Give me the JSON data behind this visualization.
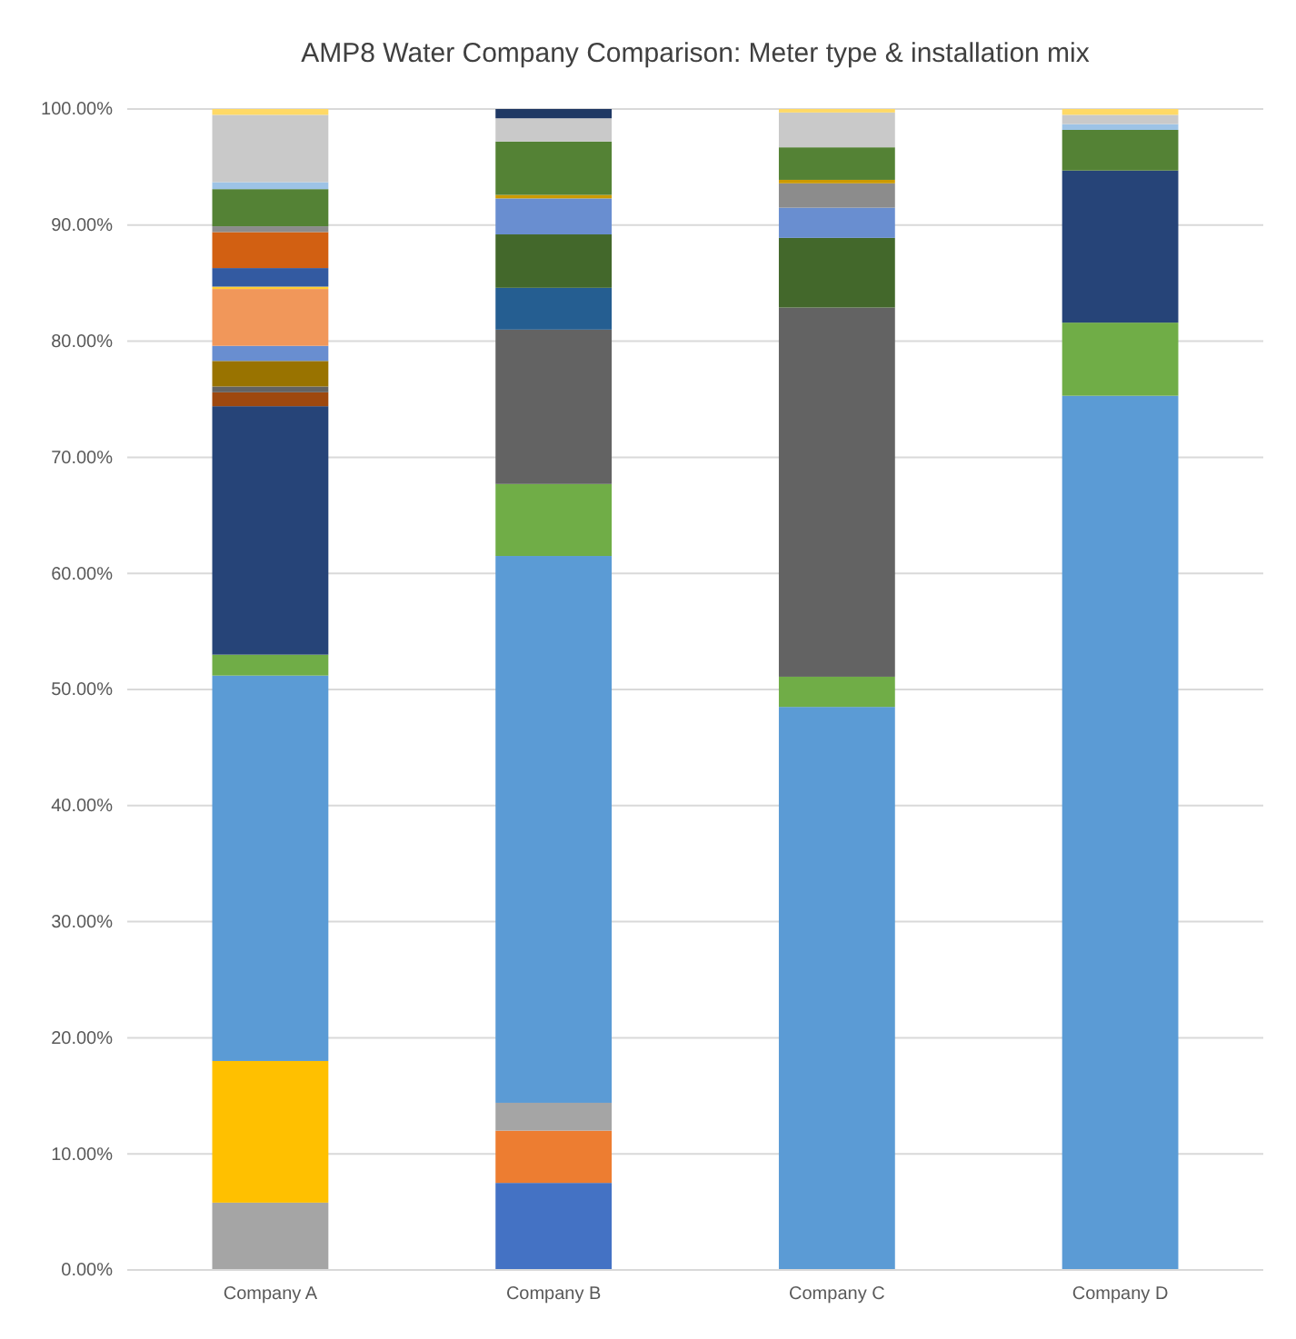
{
  "chart_data": {
    "type": "bar",
    "stacked": true,
    "title": "AMP8 Water Company Comparison: Meter type & installation mix",
    "categories": [
      "Company A",
      "Company B",
      "Company C",
      "Company D"
    ],
    "series": [
      {
        "color": "#4472c4",
        "values": [
          null,
          7.5,
          null,
          null
        ]
      },
      {
        "color": "#ed7d31",
        "values": [
          null,
          4.5,
          null,
          null
        ]
      },
      {
        "color": "#a5a5a5",
        "values": [
          5.8,
          2.4,
          null,
          null
        ]
      },
      {
        "color": "#ffc000",
        "values": [
          12.2,
          null,
          null,
          null
        ]
      },
      {
        "color": "#5b9bd5",
        "values": [
          33.2,
          47.1,
          48.5,
          75.3
        ]
      },
      {
        "color": "#70ad47",
        "values": [
          1.8,
          6.2,
          2.6,
          6.3
        ]
      },
      {
        "color": "#264478",
        "values": [
          21.4,
          null,
          null,
          13.1
        ]
      },
      {
        "color": "#9e480e",
        "values": [
          1.2,
          null,
          null,
          null
        ]
      },
      {
        "color": "#636363",
        "values": [
          0.5,
          13.3,
          31.8,
          null
        ]
      },
      {
        "color": "#997300",
        "values": [
          2.2,
          null,
          null,
          null
        ]
      },
      {
        "color": "#255e91",
        "values": [
          null,
          3.6,
          null,
          null
        ]
      },
      {
        "color": "#43682b",
        "values": [
          null,
          4.6,
          6.0,
          null
        ]
      },
      {
        "color": "#698ed0",
        "values": [
          1.3,
          3.1,
          2.6,
          null
        ]
      },
      {
        "color": "#f1975a",
        "values": [
          4.9,
          null,
          null,
          null
        ]
      },
      {
        "color": "#ffcd33",
        "values": [
          0.2,
          null,
          null,
          null
        ]
      },
      {
        "color": "#335aa1",
        "values": [
          1.6,
          null,
          null,
          null
        ]
      },
      {
        "color": "#d26012",
        "values": [
          3.1,
          null,
          null,
          null
        ]
      },
      {
        "color": "#8c8c8c",
        "values": [
          0.5,
          null,
          2.1,
          null
        ]
      },
      {
        "color": "#cc9a00",
        "values": [
          null,
          0.3,
          0.3,
          null
        ]
      },
      {
        "color": "#548235",
        "values": [
          3.2,
          4.6,
          2.8,
          3.5
        ]
      },
      {
        "color": "#9dc3e6",
        "values": [
          0.6,
          null,
          null,
          0.5
        ]
      },
      {
        "color": "#c9c9c9",
        "values": [
          5.8,
          2.0,
          3.0,
          0.8
        ]
      },
      {
        "color": "#ffd966",
        "values": [
          0.5,
          null,
          0.3,
          0.5
        ]
      },
      {
        "color": "#1f3864",
        "values": [
          null,
          0.8,
          null,
          null
        ]
      }
    ],
    "ylim": [
      0,
      100
    ],
    "yticks": [
      {
        "value": 0,
        "label": "0.00%"
      },
      {
        "value": 10,
        "label": "10.00%"
      },
      {
        "value": 20,
        "label": "20.00%"
      },
      {
        "value": 30,
        "label": "30.00%"
      },
      {
        "value": 40,
        "label": "40.00%"
      },
      {
        "value": 50,
        "label": "50.00%"
      },
      {
        "value": 60,
        "label": "60.00%"
      },
      {
        "value": 70,
        "label": "70.00%"
      },
      {
        "value": 80,
        "label": "80.00%"
      },
      {
        "value": 90,
        "label": "90.00%"
      },
      {
        "value": 100,
        "label": "100.00%"
      }
    ],
    "grid": "y"
  }
}
